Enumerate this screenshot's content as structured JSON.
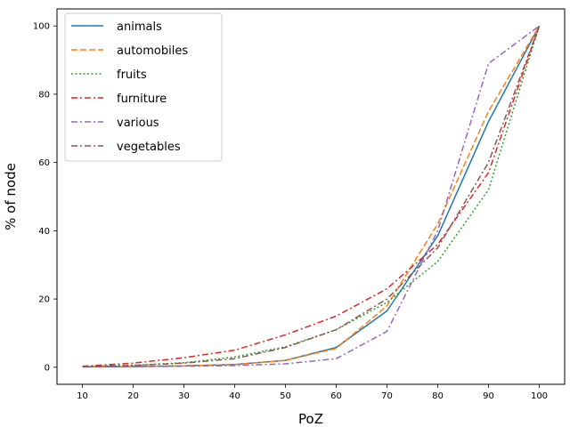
{
  "chart_data": {
    "type": "line",
    "title": "",
    "xlabel": "PoZ",
    "ylabel": "% of node",
    "x": [
      10,
      20,
      30,
      40,
      50,
      60,
      70,
      80,
      90,
      100
    ],
    "xticks": [
      "10",
      "20",
      "30",
      "40",
      "50",
      "60",
      "70",
      "80",
      "90",
      "100"
    ],
    "yticks": [
      0,
      20,
      40,
      60,
      80,
      100
    ],
    "xlim": [
      5,
      105
    ],
    "ylim": [
      -5,
      105
    ],
    "grid": false,
    "legend_position": "top-left",
    "series": [
      {
        "name": "animals",
        "color": "#1f77b4",
        "style": "solid",
        "values": [
          0.1,
          0.2,
          0.4,
          0.8,
          2.0,
          5.8,
          16.5,
          38.5,
          72.0,
          100
        ]
      },
      {
        "name": "automobiles",
        "color": "#ff7f0e",
        "style": "dashed",
        "values": [
          0.1,
          0.2,
          0.4,
          0.8,
          2.0,
          5.5,
          18.0,
          42.0,
          75.0,
          100
        ]
      },
      {
        "name": "fruits",
        "color": "#2ca02c",
        "style": "dotted",
        "values": [
          0.2,
          0.6,
          1.3,
          3.0,
          6.0,
          11.0,
          19.0,
          31.0,
          52.0,
          100
        ]
      },
      {
        "name": "furniture",
        "color": "#d62728",
        "style": "dashdot",
        "values": [
          0.3,
          1.2,
          2.8,
          5.0,
          9.5,
          15.0,
          23.0,
          36.0,
          57.0,
          100
        ]
      },
      {
        "name": "various",
        "color": "#9467bd",
        "style": "dashdot",
        "values": [
          0.1,
          0.2,
          0.3,
          0.5,
          1.0,
          2.5,
          10.5,
          40.0,
          89.0,
          100
        ]
      },
      {
        "name": "vegetables",
        "color": "#8c564b",
        "style": "dashdot",
        "values": [
          0.2,
          0.5,
          1.2,
          2.5,
          5.8,
          11.0,
          20.0,
          35.0,
          60.0,
          100
        ]
      }
    ]
  }
}
